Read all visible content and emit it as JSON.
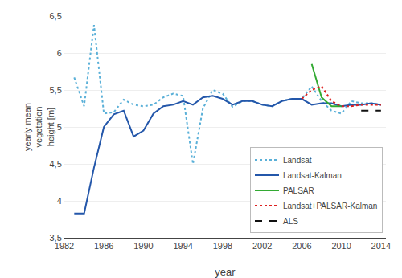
{
  "chart_data": {
    "type": "line",
    "xlabel": "year",
    "ylabel": "yearly mean\nvegetation\nheight [m]",
    "series": [
      {
        "name": "Landsat",
        "color": "#5ab0d8",
        "line_style": "dotted",
        "x": [
          1983,
          1984,
          1985,
          1986,
          1987,
          1988,
          1989,
          1990,
          1991,
          1992,
          1993,
          1994,
          1995,
          1996,
          1997,
          1998,
          1999,
          2000,
          2001,
          2002,
          2003,
          2004,
          2005,
          2006,
          2007,
          2008,
          2009,
          2010,
          2011,
          2012,
          2013,
          2014
        ],
        "values": [
          5.67,
          5.28,
          6.38,
          5.18,
          5.2,
          5.37,
          5.3,
          5.28,
          5.3,
          5.4,
          5.45,
          5.42,
          4.5,
          5.25,
          5.5,
          5.45,
          5.27,
          5.35,
          5.35,
          5.3,
          5.28,
          5.35,
          5.38,
          5.38,
          5.55,
          5.35,
          5.22,
          5.18,
          5.35,
          5.32,
          5.32,
          5.3
        ]
      },
      {
        "name": "Landsat-Kalman",
        "color": "#2457aa",
        "line_style": "solid",
        "x": [
          1983,
          1984,
          1985,
          1986,
          1987,
          1988,
          1989,
          1990,
          1991,
          1992,
          1993,
          1994,
          1995,
          1996,
          1997,
          1998,
          1999,
          2000,
          2001,
          2002,
          2003,
          2004,
          2005,
          2006,
          2007,
          2008,
          2009,
          2010,
          2011,
          2012,
          2013,
          2014
        ],
        "values": [
          3.83,
          3.83,
          4.45,
          5.0,
          5.17,
          5.22,
          4.87,
          4.95,
          5.18,
          5.28,
          5.3,
          5.35,
          5.3,
          5.4,
          5.42,
          5.38,
          5.3,
          5.35,
          5.35,
          5.3,
          5.28,
          5.35,
          5.38,
          5.38,
          5.3,
          5.32,
          5.32,
          5.28,
          5.3,
          5.3,
          5.32,
          5.3
        ]
      },
      {
        "name": "PALSAR",
        "color": "#33aa33",
        "line_style": "solid",
        "x": [
          2007,
          2008,
          2009,
          2010
        ],
        "values": [
          5.85,
          5.4,
          5.28,
          5.28
        ]
      },
      {
        "name": "Landsat+PALSAR-Kalman",
        "color": "#dd2020",
        "line_style": "dotted",
        "x": [
          2006,
          2007,
          2008,
          2009,
          2010,
          2011,
          2012,
          2013,
          2014
        ],
        "values": [
          5.38,
          5.5,
          5.55,
          5.35,
          5.28,
          5.28,
          5.3,
          5.3,
          5.3
        ]
      },
      {
        "name": "ALS",
        "color": "#111111",
        "line_style": "dashed",
        "x": [
          2012,
          2013,
          2014
        ],
        "values": [
          5.22,
          5.22,
          5.22
        ]
      }
    ],
    "xlim": [
      1982,
      2014.5
    ],
    "xticks": [
      1982,
      1986,
      1990,
      1994,
      1998,
      2002,
      2006,
      2010,
      2014
    ],
    "ylim": [
      3.5,
      6.5
    ],
    "yticks": [
      {
        "value": 3.5,
        "label": "3,5"
      },
      4,
      {
        "value": 4.5,
        "label": "4,5"
      },
      5,
      {
        "value": 5.5,
        "label": "5,5"
      },
      6,
      {
        "value": 6.5,
        "label": "6,5"
      }
    ],
    "grid": "y",
    "legend": "lower right"
  }
}
